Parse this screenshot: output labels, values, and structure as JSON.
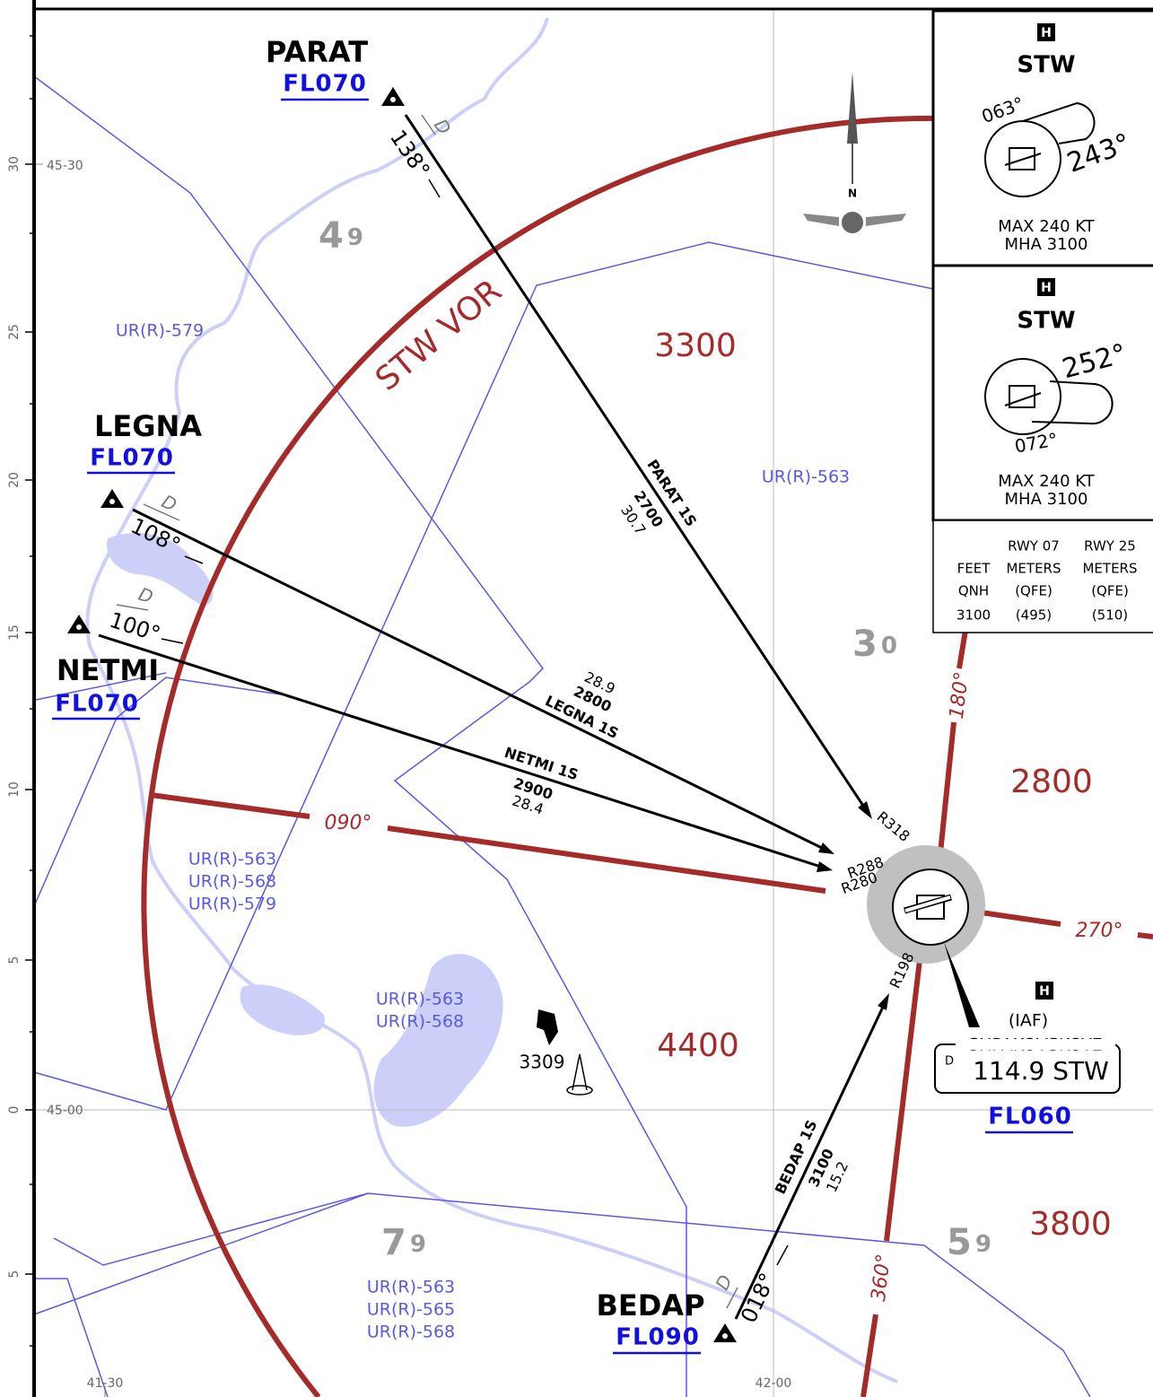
{
  "grid_labels": {
    "lat": [
      "45-30",
      "45-00"
    ],
    "lon": [
      "41-30",
      "42-00"
    ],
    "minutes": [
      "30",
      "25",
      "20",
      "15",
      "10",
      "5",
      "0",
      "5"
    ]
  },
  "waypoints": [
    {
      "name": "PARAT",
      "altitude": "FL070",
      "course": "138°",
      "dme": "D"
    },
    {
      "name": "LEGNA",
      "altitude": "FL070",
      "course": "108°",
      "dme": "D"
    },
    {
      "name": "NETMI",
      "altitude": "FL070",
      "course": "100°",
      "dme": "D"
    },
    {
      "name": "BEDAP",
      "altitude": "FL090",
      "course": "018°",
      "dme": "D"
    }
  ],
  "routes": [
    {
      "name": "PARAT 1S",
      "altitude": "2700",
      "distance": "30.7",
      "radial": "R318"
    },
    {
      "name": "LEGNA 1S",
      "altitude": "2800",
      "distance": "28.9",
      "radial": "R288"
    },
    {
      "name": "NETMI 1S",
      "altitude": "2900",
      "distance": "28.4",
      "radial": "R280"
    },
    {
      "name": "BEDAP 1S",
      "altitude": "3100",
      "distance": "15.2",
      "radial": "R198"
    }
  ],
  "vor": {
    "arc_label": "STW VOR",
    "facility": "H",
    "role": "(IAF)",
    "name": "SHPAKOVSKOYE",
    "dme": "D",
    "frequency": "114.9 STW",
    "altitude": "FL060"
  },
  "courses": [
    "090°",
    "270°",
    "180°",
    "360°"
  ],
  "msa": [
    "3300",
    "2800",
    "4400",
    "3800"
  ],
  "grid_mora": [
    {
      "major": "4",
      "minor": "9"
    },
    {
      "major": "3",
      "minor": "0"
    },
    {
      "major": "7",
      "minor": "9"
    },
    {
      "major": "5",
      "minor": "9"
    }
  ],
  "airspaces": [
    [
      "UR(R)-579"
    ],
    [
      "UR(R)-563"
    ],
    [
      "UR(R)-563",
      "UR(R)-568",
      "UR(R)-579"
    ],
    [
      "UR(R)-563",
      "UR(R)-568"
    ],
    [
      "UR(R)-563",
      "UR(R)-565",
      "UR(R)-568"
    ]
  ],
  "obstacle": "3309",
  "north": "N",
  "holdings": [
    {
      "facility": "H",
      "name": "STW",
      "inbound": "063°",
      "outbound": "243°",
      "speed": "MAX 240 KT",
      "mha": "MHA 3100"
    },
    {
      "facility": "H",
      "name": "STW",
      "inbound": "252°",
      "outbound": "072°",
      "speed": "MAX 240 KT",
      "mha": "MHA 3100"
    }
  ],
  "altimeter_table": {
    "header": [
      "RWY 07",
      "RWY 25"
    ],
    "units": [
      "FEET",
      "METERS",
      "METERS"
    ],
    "reference": [
      "QNH",
      "(QFE)",
      "(QFE)"
    ],
    "values": [
      "3100",
      "(495)",
      "(510)"
    ]
  }
}
